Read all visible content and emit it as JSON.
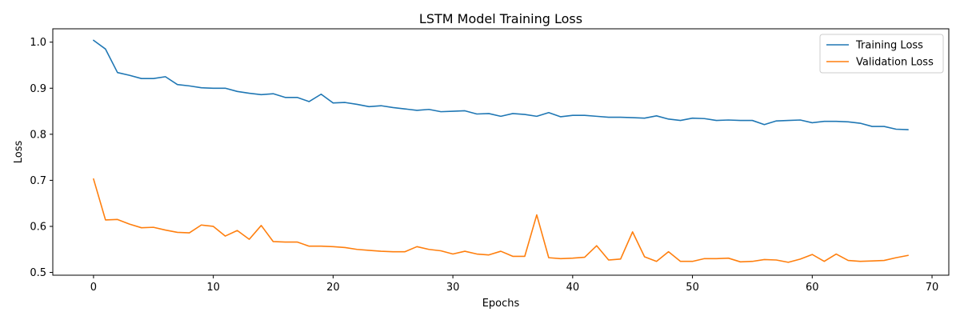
{
  "chart_data": {
    "type": "line",
    "title": "LSTM Model Training Loss",
    "xlabel": "Epochs",
    "ylabel": "Loss",
    "xlim": [
      -3.4,
      71.4
    ],
    "ylim": [
      0.494,
      1.029
    ],
    "xticks": [
      0,
      10,
      20,
      30,
      40,
      50,
      60,
      70
    ],
    "yticks": [
      0.5,
      0.6,
      0.7,
      0.8,
      0.9,
      1.0
    ],
    "ytick_labels": [
      "0.5",
      "0.6",
      "0.7",
      "0.8",
      "0.9",
      "1.0"
    ],
    "grid": false,
    "legend_position": "top-right",
    "series": [
      {
        "name": "Training Loss",
        "color": "#1f77b4",
        "values": [
          1.004,
          0.985,
          0.934,
          0.928,
          0.921,
          0.921,
          0.925,
          0.908,
          0.905,
          0.901,
          0.9,
          0.9,
          0.893,
          0.889,
          0.886,
          0.888,
          0.88,
          0.88,
          0.871,
          0.887,
          0.868,
          0.869,
          0.865,
          0.86,
          0.862,
          0.858,
          0.855,
          0.852,
          0.854,
          0.849,
          0.85,
          0.851,
          0.844,
          0.845,
          0.839,
          0.845,
          0.843,
          0.839,
          0.847,
          0.838,
          0.841,
          0.841,
          0.839,
          0.837,
          0.837,
          0.836,
          0.835,
          0.84,
          0.833,
          0.83,
          0.835,
          0.834,
          0.83,
          0.831,
          0.83,
          0.83,
          0.821,
          0.829,
          0.83,
          0.831,
          0.825,
          0.828,
          0.828,
          0.827,
          0.824,
          0.817,
          0.817,
          0.811,
          0.81
        ]
      },
      {
        "name": "Validation Loss",
        "color": "#ff7f0e",
        "values": [
          0.703,
          0.614,
          0.615,
          0.605,
          0.597,
          0.598,
          0.592,
          0.587,
          0.586,
          0.603,
          0.6,
          0.579,
          0.591,
          0.572,
          0.602,
          0.567,
          0.566,
          0.566,
          0.557,
          0.557,
          0.556,
          0.554,
          0.55,
          0.548,
          0.546,
          0.545,
          0.545,
          0.556,
          0.55,
          0.547,
          0.54,
          0.546,
          0.54,
          0.538,
          0.546,
          0.535,
          0.535,
          0.625,
          0.532,
          0.53,
          0.531,
          0.533,
          0.558,
          0.527,
          0.529,
          0.588,
          0.534,
          0.524,
          0.545,
          0.524,
          0.524,
          0.53,
          0.53,
          0.531,
          0.523,
          0.524,
          0.528,
          0.527,
          0.522,
          0.529,
          0.539,
          0.524,
          0.54,
          0.526,
          0.524,
          0.525,
          0.526,
          0.532,
          0.537
        ]
      }
    ]
  }
}
